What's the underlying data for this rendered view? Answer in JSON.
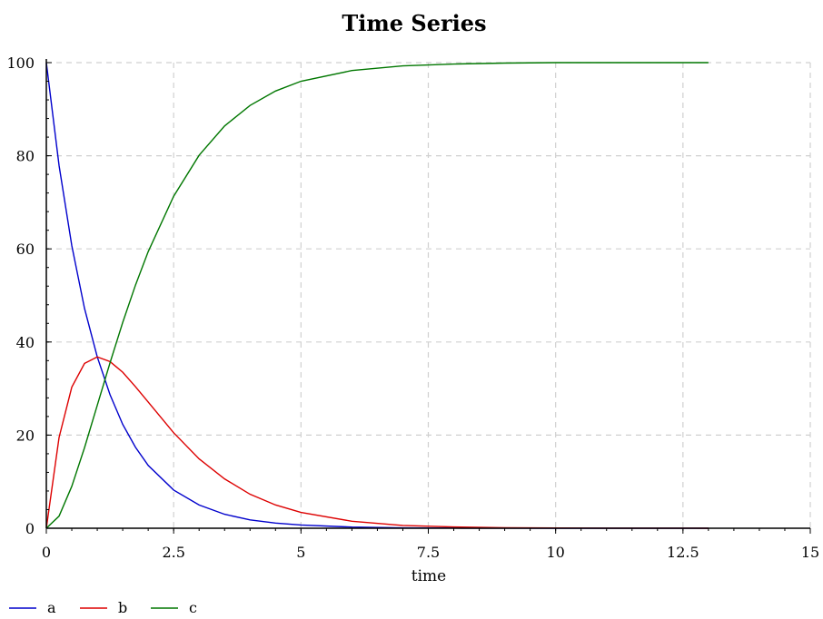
{
  "chart_data": {
    "type": "line",
    "title": "Time Series",
    "xlabel": "time",
    "ylabel": "",
    "xlim": [
      0,
      15
    ],
    "ylim": [
      0,
      100
    ],
    "x_ticks": [
      0,
      2.5,
      5,
      7.5,
      10,
      12.5,
      15
    ],
    "x_tick_labels": [
      "0",
      "2.5",
      "5",
      "7.5",
      "10",
      "12.5",
      "15"
    ],
    "y_ticks": [
      0,
      20,
      40,
      60,
      80,
      100
    ],
    "y_tick_labels": [
      "0",
      "20",
      "40",
      "60",
      "80",
      "100"
    ],
    "grid": true,
    "legend_position": "bottom-left",
    "series": [
      {
        "name": "a",
        "color": "#0000cc",
        "x": [
          0,
          0.25,
          0.5,
          0.75,
          1,
          1.25,
          1.5,
          1.75,
          2,
          2.5,
          3,
          3.5,
          4,
          4.5,
          5,
          6,
          7,
          8,
          9,
          10,
          11,
          12,
          13
        ],
        "y": [
          100,
          77.9,
          60.7,
          47.2,
          36.8,
          28.7,
          22.3,
          17.4,
          13.5,
          8.2,
          5.0,
          3.0,
          1.8,
          1.1,
          0.7,
          0.25,
          0.09,
          0.03,
          0.01,
          0.0,
          0.0,
          0.0,
          0.0
        ]
      },
      {
        "name": "b",
        "color": "#dd0000",
        "x": [
          0,
          0.25,
          0.5,
          0.75,
          1,
          1.25,
          1.5,
          1.75,
          2,
          2.5,
          3,
          3.5,
          4,
          4.5,
          5,
          6,
          7,
          8,
          9,
          10,
          11,
          12,
          13
        ],
        "y": [
          0,
          19.5,
          30.3,
          35.4,
          36.8,
          35.8,
          33.5,
          30.4,
          27.1,
          20.5,
          14.9,
          10.6,
          7.3,
          5.0,
          3.4,
          1.5,
          0.6,
          0.27,
          0.11,
          0.05,
          0.02,
          0.01,
          0.0
        ]
      },
      {
        "name": "c",
        "color": "#007700",
        "x": [
          0,
          0.25,
          0.5,
          0.75,
          1,
          1.25,
          1.5,
          1.75,
          2,
          2.5,
          3,
          3.5,
          4,
          4.5,
          5,
          6,
          7,
          8,
          9,
          10,
          11,
          12,
          13
        ],
        "y": [
          0,
          2.6,
          9.0,
          17.3,
          26.4,
          35.5,
          44.2,
          52.2,
          59.4,
          71.3,
          80.1,
          86.4,
          90.8,
          93.9,
          96.0,
          98.3,
          99.3,
          99.7,
          99.9,
          100,
          100,
          100,
          100
        ]
      }
    ]
  }
}
